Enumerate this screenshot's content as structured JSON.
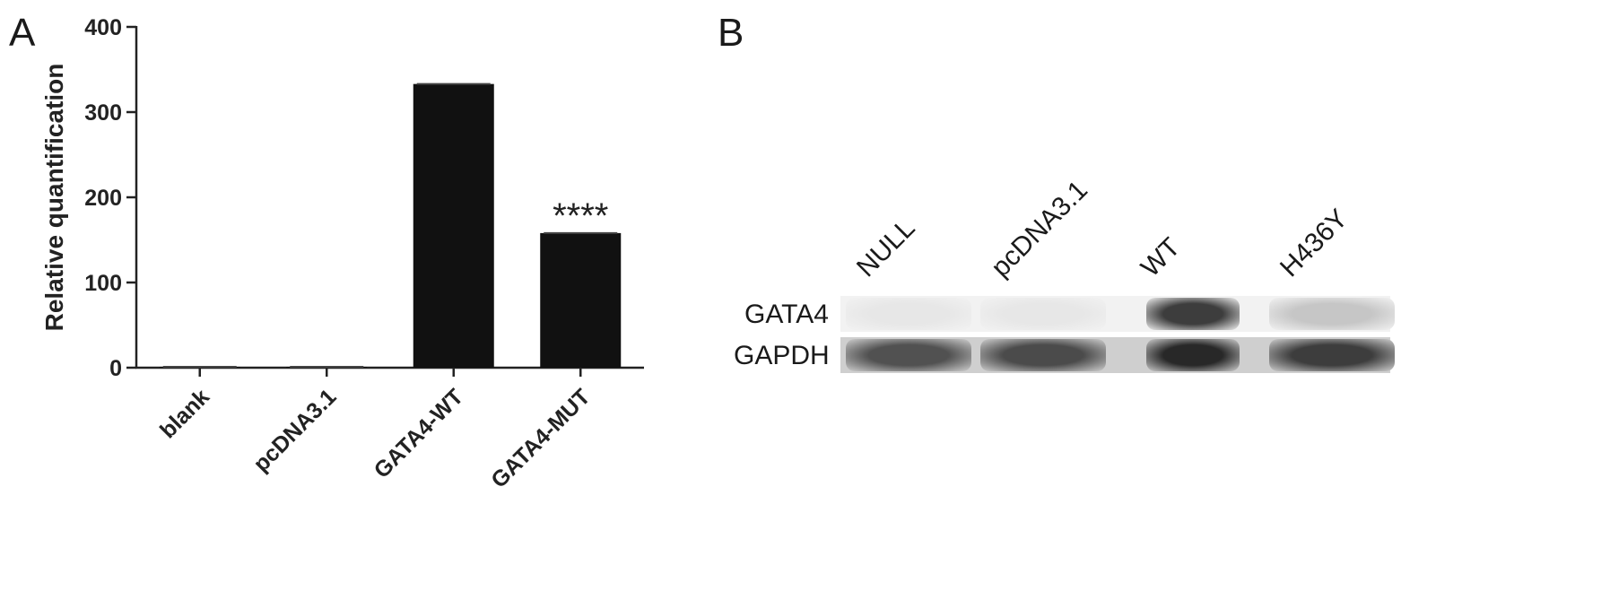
{
  "panels": {
    "a_label": "A",
    "b_label": "B"
  },
  "chart_data": {
    "type": "bar",
    "categories": [
      "blank",
      "pcDNA3.1",
      "GATA4-WT",
      "GATA4-MUT"
    ],
    "values": [
      1,
      1,
      333,
      158
    ],
    "ylabel": "Relative quantification",
    "ylim": [
      0,
      400
    ],
    "yticks": [
      0,
      100,
      200,
      300,
      400
    ],
    "annotations": [
      {
        "category": "GATA4-MUT",
        "text": "****"
      }
    ],
    "bar_color": "#111111",
    "grid": false
  },
  "blot": {
    "lanes": [
      "NULL",
      "pcDNA3.1",
      "WT",
      "H436Y"
    ],
    "rows": [
      {
        "label": "GATA4",
        "intensity": [
          0.02,
          0.02,
          0.85,
          0.18
        ]
      },
      {
        "label": "GAPDH",
        "intensity": [
          0.75,
          0.78,
          0.95,
          0.85
        ]
      }
    ]
  }
}
